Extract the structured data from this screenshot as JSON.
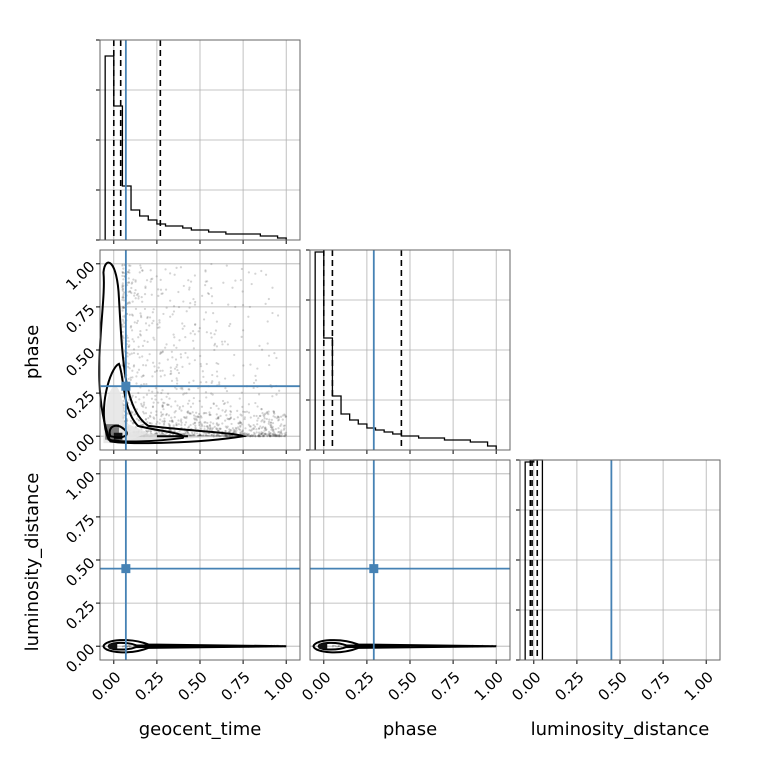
{
  "chart_data": {
    "type": "corner",
    "parameters": [
      "geocent_time",
      "phase",
      "luminosity_distance"
    ],
    "axis_range": [
      -0.08,
      1.08
    ],
    "tick_labels": [
      "0.00",
      "0.25",
      "0.50",
      "0.75",
      "1.00"
    ],
    "ticks": [
      0,
      0.25,
      0.5,
      0.75,
      1.0
    ],
    "grid": true,
    "colors": {
      "truth": "#4682b4",
      "quantile": "#000000",
      "contour": "#000000",
      "points": "#555555"
    },
    "truths": {
      "geocent_time": 0.07,
      "phase": 0.29,
      "luminosity_distance": 0.45
    },
    "diagonal": [
      {
        "parameter": "geocent_time",
        "quantiles": [
          0.0,
          0.04,
          0.27
        ],
        "bin_edges": [
          -0.05,
          0.0,
          0.05,
          0.1,
          0.15,
          0.2,
          0.25,
          0.3,
          0.35,
          0.4,
          0.45,
          0.5,
          0.55,
          0.6,
          0.65,
          0.7,
          0.75,
          0.8,
          0.85,
          0.9,
          0.95,
          1.0
        ],
        "counts": [
          0.92,
          0.67,
          0.27,
          0.15,
          0.12,
          0.1,
          0.08,
          0.07,
          0.07,
          0.06,
          0.05,
          0.05,
          0.04,
          0.04,
          0.03,
          0.03,
          0.03,
          0.03,
          0.02,
          0.02,
          0.01
        ]
      },
      {
        "parameter": "phase",
        "quantiles": [
          0.0,
          0.05,
          0.45
        ],
        "bin_edges": [
          -0.05,
          0.0,
          0.05,
          0.1,
          0.15,
          0.2,
          0.25,
          0.3,
          0.35,
          0.4,
          0.45,
          0.5,
          0.55,
          0.6,
          0.65,
          0.7,
          0.75,
          0.8,
          0.85,
          0.9,
          0.95,
          1.0
        ],
        "counts": [
          0.99,
          0.56,
          0.27,
          0.18,
          0.15,
          0.13,
          0.11,
          0.1,
          0.09,
          0.08,
          0.07,
          0.07,
          0.06,
          0.06,
          0.06,
          0.05,
          0.05,
          0.05,
          0.04,
          0.04,
          0.02
        ]
      },
      {
        "parameter": "luminosity_distance",
        "quantiles": [
          -0.02,
          -0.01,
          0.02
        ],
        "bin_edges": [
          -0.05,
          0.0,
          0.05
        ],
        "counts": [
          0.99,
          1.0
        ]
      }
    ],
    "scatter_pair": {
      "x": "geocent_time",
      "y": "phase"
    },
    "contour_levels_description": "three density contours per 2D panel"
  }
}
